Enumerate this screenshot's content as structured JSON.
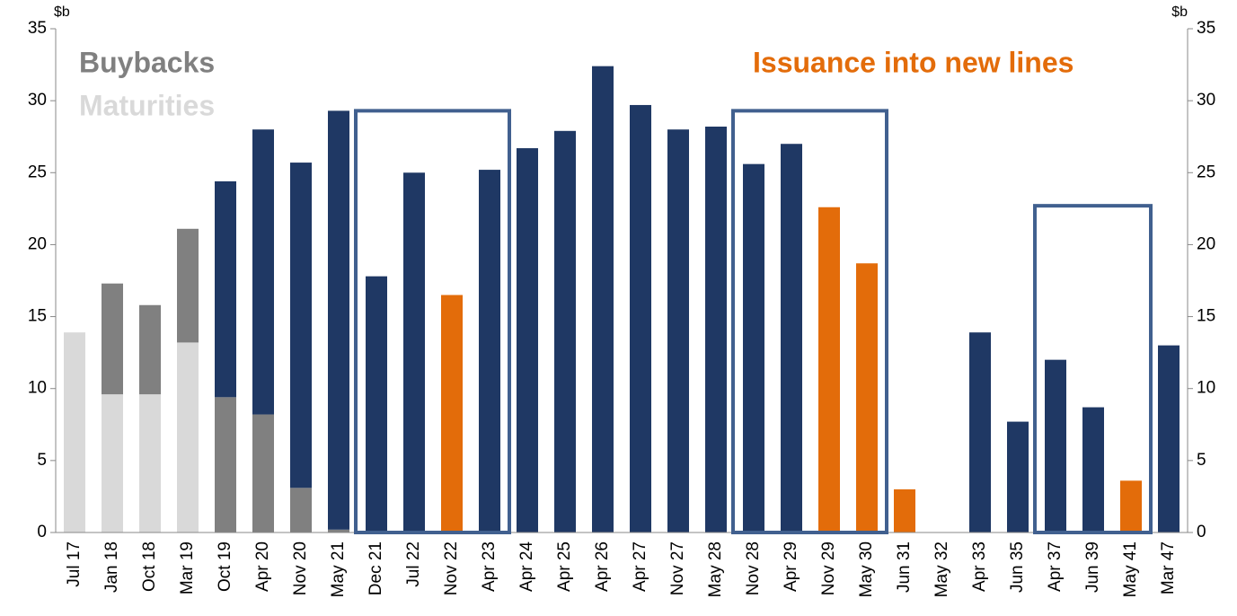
{
  "chart_data": {
    "type": "bar",
    "stacked": true,
    "categories": [
      "Jul 17",
      "Jan 18",
      "Oct 18",
      "Mar 19",
      "Oct 19",
      "Apr 20",
      "Nov 20",
      "May 21",
      "Dec 21",
      "Jul 22",
      "Nov 22",
      "Apr 23",
      "Apr 24",
      "Apr 25",
      "Apr 26",
      "Apr 27",
      "Nov 27",
      "May 28",
      "Nov 28",
      "Apr 29",
      "Nov 29",
      "May 30",
      "Jun 31",
      "May 32",
      "Apr 33",
      "Jun 35",
      "Apr 37",
      "Jun 39",
      "May 41",
      "Mar 47"
    ],
    "series": [
      {
        "name": "Maturities",
        "color": "#d9d9d9",
        "values": [
          13.9,
          9.6,
          9.6,
          13.2,
          null,
          null,
          null,
          null,
          null,
          null,
          null,
          null,
          null,
          null,
          null,
          null,
          null,
          null,
          null,
          null,
          null,
          null,
          null,
          null,
          null,
          null,
          null,
          null,
          null,
          null
        ]
      },
      {
        "name": "Buybacks",
        "color": "#808080",
        "values": [
          null,
          7.7,
          6.2,
          7.9,
          9.4,
          8.2,
          3.1,
          0.2,
          null,
          null,
          null,
          null,
          null,
          null,
          null,
          null,
          null,
          null,
          null,
          null,
          null,
          null,
          null,
          null,
          null,
          null,
          null,
          null,
          null,
          null
        ]
      },
      {
        "color": "#1f3864",
        "values": [
          null,
          null,
          null,
          null,
          15.0,
          19.8,
          22.6,
          29.1,
          17.8,
          25.0,
          null,
          25.2,
          26.7,
          27.9,
          32.4,
          29.7,
          28.0,
          28.2,
          25.6,
          27.0,
          null,
          null,
          null,
          null,
          13.9,
          7.7,
          12.0,
          8.7,
          null,
          13.0
        ]
      },
      {
        "name": "Issuance into new lines",
        "color": "#e36c0a",
        "values": [
          null,
          null,
          null,
          null,
          null,
          null,
          null,
          null,
          null,
          null,
          16.5,
          null,
          null,
          null,
          null,
          null,
          null,
          null,
          null,
          null,
          22.6,
          18.7,
          3.0,
          null,
          null,
          null,
          null,
          null,
          3.6,
          null
        ]
      }
    ],
    "highlights": [
      {
        "start": "Dec 21",
        "end": "Apr 23",
        "top": 29.3
      },
      {
        "start": "Nov 28",
        "end": "May 30",
        "top": 29.3
      },
      {
        "start": "Apr 37",
        "end": "May 41",
        "top": 22.7
      }
    ],
    "ylabel": "$b",
    "y2label": "$b",
    "ylim": [
      0,
      35
    ],
    "yticks": [
      0,
      5,
      10,
      15,
      20,
      25,
      30,
      35
    ],
    "y2lim": [
      0,
      35
    ],
    "y2ticks": [
      0,
      5,
      10,
      15,
      20,
      25,
      30,
      35
    ]
  }
}
